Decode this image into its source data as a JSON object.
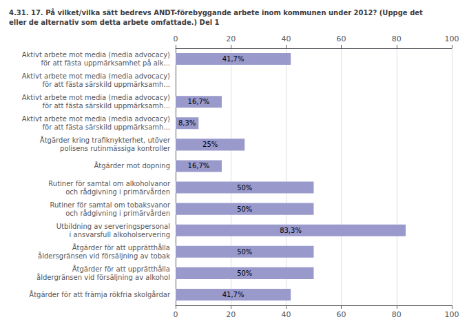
{
  "chart_data": {
    "type": "bar",
    "orientation": "horizontal",
    "title": "4.31. 17. På vilket/vilka sätt bedrevs ANDT-förebyggande arbete inom kommunen under 2012? (Uppge det\neller de alternativ som detta arbete omfattade.) Del 1",
    "categories": [
      "Aktivt arbete mot media (media advocacy)\nför att fästa uppmärksamhet på alk...",
      "Aktivt arbete mot media (media advocacy)\nför att fästa särskild uppmärksamh...",
      "Aktivt arbete mot media (media advocacy)\nför att fästa särskild uppmärksamh...",
      "Aktivt arbete mot media (media advocacy)\nför att fästa särskild uppmärksamh...",
      "Åtgärder kring trafiknykterhet, utöver\npolisens rutinmässiga kontroller",
      "Åtgärder mot dopning",
      "Rutiner för samtal om alkoholvanor\noch rådgivning i primärvården",
      "Rutiner för samtal om tobaksvanor\noch rådgivning i primärvården",
      "Utbildning av serveringspersonal\ni ansvarsfull alkoholservering",
      "Åtgärder för att upprätthålla\nåldersgränsen vid försäljning av tobak",
      "Åtgärder för att upprätthålla\nåldergränsen vid försäljning av alkohol",
      "Åtgärder för att främja rökfria skolgårdar"
    ],
    "values": [
      41.7,
      0,
      16.7,
      8.3,
      25.0,
      16.7,
      50.0,
      50.0,
      83.3,
      50.0,
      50.0,
      41.7
    ],
    "value_labels": [
      "41,7%",
      null,
      "16,7%",
      "8,3%",
      "25%",
      "16,7%",
      "50%",
      "50%",
      "83,3%",
      "50%",
      "50%",
      "41,7%"
    ],
    "data_labels": true,
    "color": "#9999cc",
    "xlim": [
      0,
      100
    ],
    "xticks": [
      0,
      20,
      40,
      60,
      80,
      100
    ],
    "grid": true
  }
}
